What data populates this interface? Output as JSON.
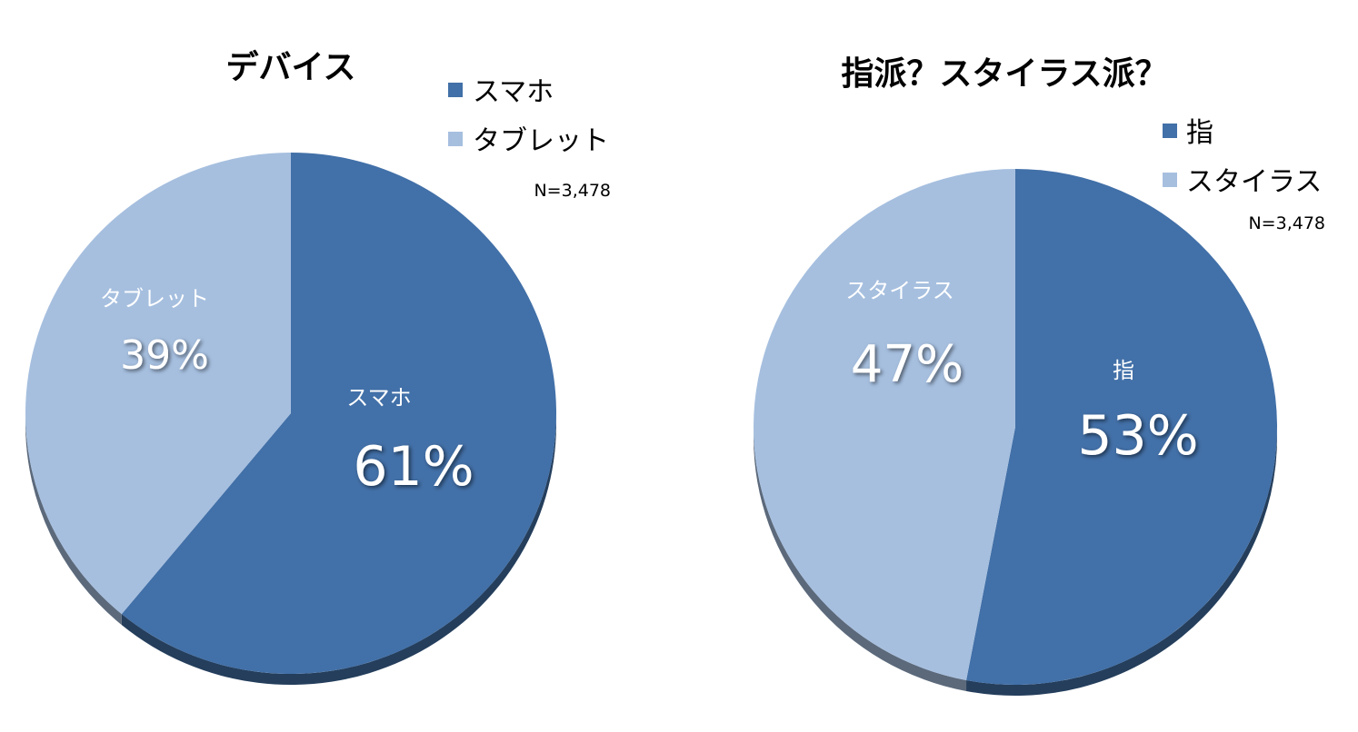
{
  "chart_data": [
    {
      "type": "pie",
      "title": "デバイス",
      "note": "N=3,478",
      "labels": [
        "スマホ",
        "タブレット"
      ],
      "values": [
        61,
        39
      ],
      "value_labels": [
        "61%",
        "39%"
      ],
      "colors": [
        "#4270a8",
        "#a6bfdf"
      ],
      "legend": "top-right"
    },
    {
      "type": "pie",
      "title": "指派？スタイラス派？",
      "note": "N=3,478",
      "labels": [
        "指",
        "スタイラス"
      ],
      "values": [
        53,
        47
      ],
      "value_labels": [
        "53%",
        "47%"
      ],
      "colors": [
        "#4270a8",
        "#a6bfdf"
      ],
      "legend": "top-right"
    }
  ]
}
